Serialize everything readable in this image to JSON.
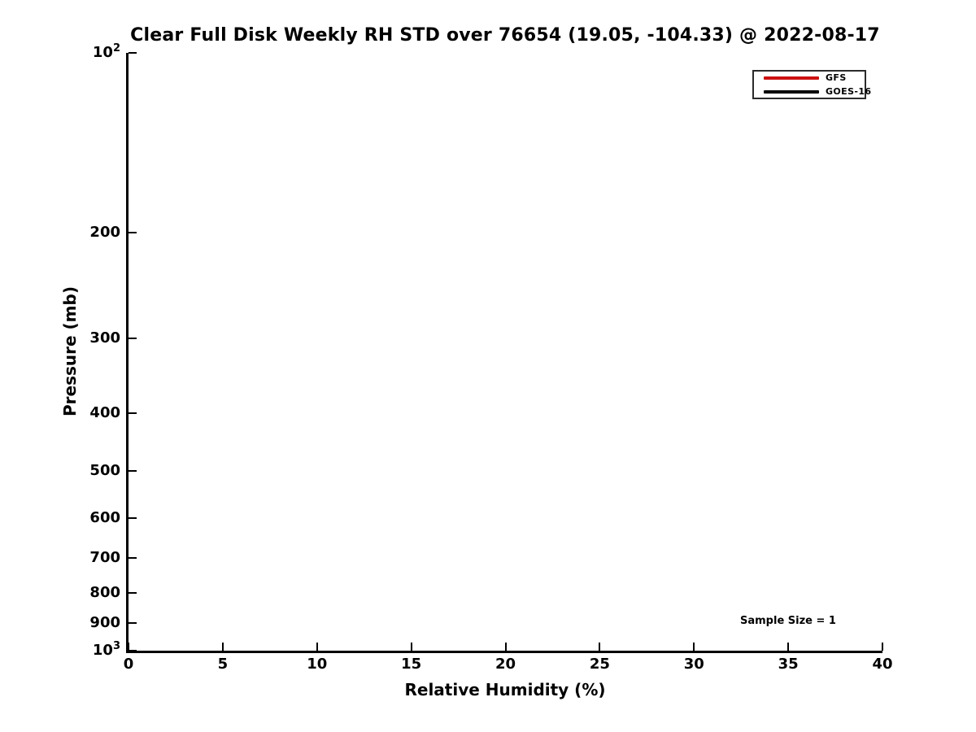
{
  "figure": {
    "background": "#ffffff",
    "axis_color": "#000000"
  },
  "chart_data": {
    "type": "line",
    "title": "Clear Full Disk Weekly RH STD over 76654 (19.05, -104.33) @ 2022-08-17",
    "xlabel": "Relative Humidity (%)",
    "ylabel": "Pressure (mb)",
    "xlim": [
      0,
      40
    ],
    "xticks": [
      0,
      5,
      10,
      15,
      20,
      25,
      30,
      35,
      40
    ],
    "ylim": [
      100,
      1000
    ],
    "yscale": "log10",
    "y_axis_inverted": true,
    "yticks": [
      {
        "value": 100,
        "base": "10",
        "sup": "2"
      },
      {
        "value": 200,
        "label": "200"
      },
      {
        "value": 300,
        "label": "300"
      },
      {
        "value": 400,
        "label": "400"
      },
      {
        "value": 500,
        "label": "500"
      },
      {
        "value": 600,
        "label": "600"
      },
      {
        "value": 700,
        "label": "700"
      },
      {
        "value": 800,
        "label": "800"
      },
      {
        "value": 900,
        "label": "900"
      },
      {
        "value": 1000,
        "base": "10",
        "sup": "3"
      }
    ],
    "grid": false,
    "legend": {
      "position": "top-right",
      "entries": [
        {
          "label": "GFS",
          "color": "#cc1111"
        },
        {
          "label": "GOES-16",
          "color": "#000000"
        }
      ]
    },
    "series": [
      {
        "name": "GFS",
        "color": "#cc1111",
        "x": [],
        "y": []
      },
      {
        "name": "GOES-16",
        "color": "#000000",
        "x": [],
        "y": []
      }
    ],
    "annotations": [
      {
        "text": "Sample Size = 1"
      }
    ]
  }
}
